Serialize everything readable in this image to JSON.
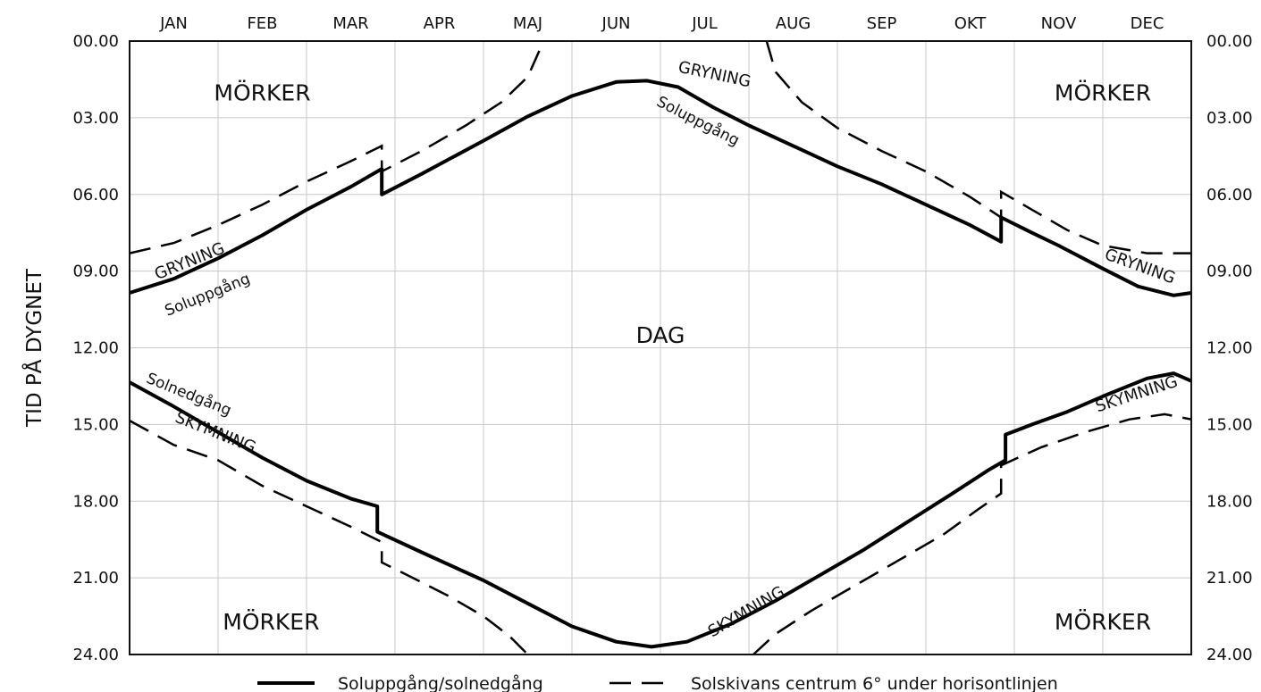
{
  "chart_data": {
    "type": "line",
    "ylabel": "TID PÅ DYGNET",
    "months": [
      "JAN",
      "FEB",
      "MAR",
      "APR",
      "MAJ",
      "JUN",
      "JUL",
      "AUG",
      "SEP",
      "OKT",
      "NOV",
      "DEC"
    ],
    "yticks": [
      "00.00",
      "03.00",
      "06.00",
      "09.00",
      "12.00",
      "15.00",
      "18.00",
      "21.00",
      "24.00"
    ],
    "ylim": [
      0,
      24
    ],
    "xlim": [
      0,
      12
    ],
    "y_inverted": true,
    "grid": true,
    "region_labels": [
      {
        "text": "MÖRKER",
        "x": 1.5,
        "y": 2.0
      },
      {
        "text": "MÖRKER",
        "x": 11.0,
        "y": 2.0
      },
      {
        "text": "MÖRKER",
        "x": 1.6,
        "y": 22.7
      },
      {
        "text": "MÖRKER",
        "x": 11.0,
        "y": 22.7
      },
      {
        "text": "DAG",
        "x": 6.0,
        "y": 11.5
      }
    ],
    "curve_labels": [
      {
        "text": "GRYNING",
        "x": 6.6,
        "y": 1.5,
        "rot": 12,
        "big": true
      },
      {
        "text": "Soluppgång",
        "x": 6.4,
        "y": 3.3,
        "rot": 27,
        "big": false
      },
      {
        "text": "GRYNING",
        "x": 0.7,
        "y": 8.8,
        "rot": -22,
        "big": true
      },
      {
        "text": "Soluppgång",
        "x": 0.9,
        "y": 10.1,
        "rot": -22,
        "big": false
      },
      {
        "text": "GRYNING",
        "x": 11.4,
        "y": 9.0,
        "rot": 20,
        "big": true
      },
      {
        "text": "Solnedgång",
        "x": 0.65,
        "y": 14.0,
        "rot": 22,
        "big": false
      },
      {
        "text": "SKYMNING",
        "x": 0.95,
        "y": 15.5,
        "rot": 22,
        "big": true
      },
      {
        "text": "SKYMNING",
        "x": 7.0,
        "y": 22.5,
        "rot": -30,
        "big": true
      },
      {
        "text": "SKYMNING",
        "x": 11.4,
        "y": 14.0,
        "rot": -18,
        "big": true
      }
    ],
    "series": [
      {
        "name": "Soluppgång/solnedgång",
        "style": "solid",
        "segments": [
          [
            [
              0,
              9.85
            ],
            [
              0.5,
              9.3
            ],
            [
              1,
              8.5
            ],
            [
              1.5,
              7.6
            ],
            [
              2,
              6.6
            ],
            [
              2.5,
              5.7
            ],
            [
              2.85,
              5.0
            ],
            [
              2.85,
              6.0
            ],
            [
              3.3,
              5.2
            ],
            [
              4,
              3.9
            ],
            [
              4.5,
              2.95
            ],
            [
              5,
              2.15
            ],
            [
              5.5,
              1.6
            ],
            [
              5.85,
              1.55
            ],
            [
              6.2,
              1.8
            ],
            [
              6.6,
              2.6
            ],
            [
              7,
              3.3
            ],
            [
              7.5,
              4.1
            ],
            [
              8,
              4.9
            ],
            [
              8.5,
              5.6
            ],
            [
              9,
              6.4
            ],
            [
              9.5,
              7.2
            ],
            [
              9.85,
              7.85
            ],
            [
              9.85,
              6.9
            ],
            [
              10.2,
              7.5
            ],
            [
              10.5,
              8.0
            ],
            [
              11,
              8.9
            ],
            [
              11.4,
              9.6
            ],
            [
              11.8,
              9.95
            ],
            [
              12,
              9.85
            ]
          ],
          [
            [
              0,
              13.35
            ],
            [
              0.5,
              14.3
            ],
            [
              1,
              15.3
            ],
            [
              1.5,
              16.3
            ],
            [
              2,
              17.2
            ],
            [
              2.5,
              17.9
            ],
            [
              2.8,
              18.2
            ],
            [
              2.8,
              19.2
            ],
            [
              3.3,
              20.0
            ],
            [
              4,
              21.1
            ],
            [
              4.5,
              22.0
            ],
            [
              5,
              22.9
            ],
            [
              5.5,
              23.5
            ],
            [
              5.9,
              23.7
            ],
            [
              6.3,
              23.5
            ],
            [
              6.8,
              22.8
            ],
            [
              7.3,
              21.9
            ],
            [
              7.8,
              20.9
            ],
            [
              8.3,
              19.9
            ],
            [
              8.8,
              18.8
            ],
            [
              9.3,
              17.7
            ],
            [
              9.7,
              16.8
            ],
            [
              9.9,
              16.4
            ],
            [
              9.9,
              15.4
            ],
            [
              10.2,
              15.0
            ],
            [
              10.6,
              14.5
            ],
            [
              11,
              13.9
            ],
            [
              11.5,
              13.2
            ],
            [
              11.8,
              13.0
            ],
            [
              12,
              13.3
            ]
          ]
        ]
      },
      {
        "name": "Solskivans centrum 6° under horisontlinjen",
        "style": "dashed",
        "segments": [
          [
            [
              0,
              8.3
            ],
            [
              0.5,
              7.9
            ],
            [
              1,
              7.2
            ],
            [
              1.5,
              6.4
            ],
            [
              2,
              5.5
            ],
            [
              2.5,
              4.7
            ],
            [
              2.85,
              4.1
            ],
            [
              2.85,
              5.1
            ],
            [
              3.3,
              4.3
            ],
            [
              3.8,
              3.3
            ],
            [
              4.2,
              2.4
            ],
            [
              4.5,
              1.4
            ],
            [
              4.68,
              0.0
            ]
          ],
          [
            [
              7.2,
              0.0
            ],
            [
              7.3,
              1.2
            ],
            [
              7.6,
              2.4
            ],
            [
              8,
              3.4
            ],
            [
              8.5,
              4.3
            ],
            [
              9,
              5.1
            ],
            [
              9.5,
              6.1
            ],
            [
              9.85,
              6.9
            ],
            [
              9.85,
              5.9
            ],
            [
              10.2,
              6.6
            ],
            [
              10.6,
              7.4
            ],
            [
              11,
              8.0
            ],
            [
              11.5,
              8.3
            ],
            [
              12,
              8.3
            ]
          ],
          [
            [
              0,
              14.85
            ],
            [
              0.5,
              15.8
            ],
            [
              1,
              16.4
            ],
            [
              1.5,
              17.4
            ],
            [
              2,
              18.2
            ],
            [
              2.5,
              19.0
            ],
            [
              2.85,
              19.6
            ],
            [
              2.85,
              20.4
            ],
            [
              3.2,
              21.0
            ],
            [
              3.6,
              21.7
            ],
            [
              4,
              22.5
            ],
            [
              4.3,
              23.3
            ],
            [
              4.5,
              24.0
            ]
          ],
          [
            [
              7.05,
              24.0
            ],
            [
              7.3,
              23.2
            ],
            [
              7.7,
              22.3
            ],
            [
              8.2,
              21.3
            ],
            [
              8.7,
              20.3
            ],
            [
              9.2,
              19.3
            ],
            [
              9.6,
              18.3
            ],
            [
              9.85,
              17.7
            ],
            [
              9.85,
              16.6
            ],
            [
              10.3,
              15.9
            ],
            [
              10.8,
              15.3
            ],
            [
              11.3,
              14.8
            ],
            [
              11.7,
              14.6
            ],
            [
              12,
              14.8
            ]
          ]
        ]
      }
    ]
  },
  "legend": {
    "solid_label": "Soluppgång/solnedgång",
    "dashed_label": "Solskivans centrum 6° under horisontlinjen"
  }
}
